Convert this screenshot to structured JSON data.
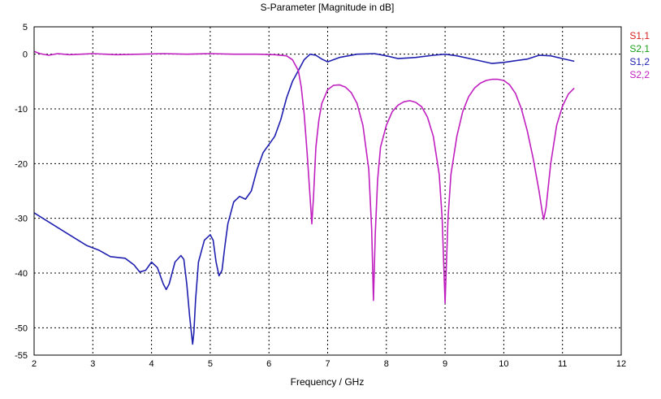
{
  "chart_data": {
    "type": "line",
    "title": "S-Parameter [Magnitude in dB]",
    "xlabel": "Frequency / GHz",
    "ylabel": "",
    "xlim": [
      2,
      12
    ],
    "ylim": [
      -55,
      5
    ],
    "xticks": [
      2,
      3,
      4,
      5,
      6,
      7,
      8,
      9,
      10,
      11,
      12
    ],
    "yticks": [
      5,
      0,
      -10,
      -20,
      -30,
      -40,
      -50,
      -55
    ],
    "grid": true,
    "legend_position": "top-right",
    "legend": [
      {
        "label": "S1,1",
        "color": "#d62020"
      },
      {
        "label": "S2,1",
        "color": "#1aa01a"
      },
      {
        "label": "S1,2",
        "color": "#2020b0"
      },
      {
        "label": "S2,2",
        "color": "#c020c0"
      }
    ],
    "series": [
      {
        "name": "S1,2",
        "color": "#2020b0",
        "points": [
          [
            2.0,
            -29.0
          ],
          [
            2.3,
            -31.0
          ],
          [
            2.6,
            -33.0
          ],
          [
            2.9,
            -35.0
          ],
          [
            3.1,
            -35.8
          ],
          [
            3.3,
            -37.0
          ],
          [
            3.55,
            -37.3
          ],
          [
            3.7,
            -38.5
          ],
          [
            3.8,
            -39.8
          ],
          [
            3.9,
            -39.5
          ],
          [
            4.0,
            -38.0
          ],
          [
            4.1,
            -39.0
          ],
          [
            4.2,
            -42.0
          ],
          [
            4.25,
            -43.0
          ],
          [
            4.3,
            -42.0
          ],
          [
            4.4,
            -38.0
          ],
          [
            4.5,
            -36.8
          ],
          [
            4.55,
            -37.5
          ],
          [
            4.6,
            -42.0
          ],
          [
            4.65,
            -48.0
          ],
          [
            4.7,
            -53.0
          ],
          [
            4.72,
            -51.0
          ],
          [
            4.75,
            -45.0
          ],
          [
            4.8,
            -38.0
          ],
          [
            4.9,
            -34.0
          ],
          [
            5.0,
            -33.0
          ],
          [
            5.05,
            -34.0
          ],
          [
            5.1,
            -38.0
          ],
          [
            5.15,
            -40.5
          ],
          [
            5.2,
            -39.5
          ],
          [
            5.25,
            -35.0
          ],
          [
            5.3,
            -31.0
          ],
          [
            5.4,
            -27.0
          ],
          [
            5.5,
            -26.0
          ],
          [
            5.6,
            -26.5
          ],
          [
            5.7,
            -25.0
          ],
          [
            5.8,
            -21.0
          ],
          [
            5.9,
            -18.0
          ],
          [
            6.0,
            -16.5
          ],
          [
            6.1,
            -15.0
          ],
          [
            6.2,
            -12.0
          ],
          [
            6.3,
            -8.0
          ],
          [
            6.4,
            -5.0
          ],
          [
            6.5,
            -3.0
          ],
          [
            6.6,
            -1.0
          ],
          [
            6.7,
            0.0
          ],
          [
            6.8,
            -0.2
          ],
          [
            6.9,
            -0.9
          ],
          [
            7.0,
            -1.4
          ],
          [
            7.2,
            -0.6
          ],
          [
            7.5,
            0.0
          ],
          [
            7.8,
            0.1
          ],
          [
            8.0,
            -0.3
          ],
          [
            8.2,
            -0.8
          ],
          [
            8.5,
            -0.6
          ],
          [
            8.8,
            -0.2
          ],
          [
            9.0,
            0.0
          ],
          [
            9.2,
            -0.3
          ],
          [
            9.5,
            -1.0
          ],
          [
            9.8,
            -1.7
          ],
          [
            10.0,
            -1.5
          ],
          [
            10.2,
            -1.2
          ],
          [
            10.4,
            -0.9
          ],
          [
            10.6,
            -0.2
          ],
          [
            10.8,
            -0.3
          ],
          [
            11.0,
            -0.8
          ],
          [
            11.2,
            -1.3
          ]
        ]
      },
      {
        "name": "S2,2",
        "color": "#c020c0",
        "points": [
          [
            2.0,
            0.5
          ],
          [
            2.1,
            0.1
          ],
          [
            2.25,
            -0.2
          ],
          [
            2.4,
            0.1
          ],
          [
            2.6,
            -0.1
          ],
          [
            2.8,
            0.0
          ],
          [
            3.0,
            0.1
          ],
          [
            3.4,
            -0.1
          ],
          [
            3.8,
            0.0
          ],
          [
            4.2,
            0.1
          ],
          [
            4.6,
            0.0
          ],
          [
            5.0,
            0.1
          ],
          [
            5.4,
            0.0
          ],
          [
            5.8,
            0.0
          ],
          [
            6.1,
            -0.1
          ],
          [
            6.3,
            -0.3
          ],
          [
            6.4,
            -1.0
          ],
          [
            6.5,
            -3.0
          ],
          [
            6.55,
            -6.0
          ],
          [
            6.6,
            -11.0
          ],
          [
            6.65,
            -18.0
          ],
          [
            6.7,
            -26.0
          ],
          [
            6.73,
            -31.0
          ],
          [
            6.76,
            -26.0
          ],
          [
            6.8,
            -17.0
          ],
          [
            6.85,
            -12.0
          ],
          [
            6.9,
            -9.0
          ],
          [
            7.0,
            -6.5
          ],
          [
            7.1,
            -5.7
          ],
          [
            7.2,
            -5.6
          ],
          [
            7.3,
            -6.0
          ],
          [
            7.4,
            -7.0
          ],
          [
            7.5,
            -9.0
          ],
          [
            7.6,
            -13.0
          ],
          [
            7.7,
            -21.0
          ],
          [
            7.75,
            -32.0
          ],
          [
            7.78,
            -45.0
          ],
          [
            7.81,
            -33.0
          ],
          [
            7.85,
            -23.0
          ],
          [
            7.9,
            -17.0
          ],
          [
            8.0,
            -13.0
          ],
          [
            8.1,
            -10.5
          ],
          [
            8.2,
            -9.3
          ],
          [
            8.3,
            -8.7
          ],
          [
            8.4,
            -8.5
          ],
          [
            8.5,
            -8.8
          ],
          [
            8.6,
            -9.6
          ],
          [
            8.7,
            -11.5
          ],
          [
            8.8,
            -15.0
          ],
          [
            8.9,
            -22.0
          ],
          [
            8.95,
            -30.0
          ],
          [
            9.0,
            -45.5
          ],
          [
            9.05,
            -30.0
          ],
          [
            9.1,
            -22.0
          ],
          [
            9.2,
            -15.0
          ],
          [
            9.3,
            -10.5
          ],
          [
            9.4,
            -7.8
          ],
          [
            9.5,
            -6.2
          ],
          [
            9.6,
            -5.3
          ],
          [
            9.7,
            -4.8
          ],
          [
            9.8,
            -4.6
          ],
          [
            9.9,
            -4.6
          ],
          [
            10.0,
            -4.8
          ],
          [
            10.1,
            -5.6
          ],
          [
            10.2,
            -7.2
          ],
          [
            10.3,
            -10.0
          ],
          [
            10.4,
            -14.0
          ],
          [
            10.5,
            -19.0
          ],
          [
            10.6,
            -25.0
          ],
          [
            10.65,
            -28.5
          ],
          [
            10.68,
            -30.2
          ],
          [
            10.72,
            -28.0
          ],
          [
            10.8,
            -20.0
          ],
          [
            10.9,
            -13.0
          ],
          [
            11.0,
            -9.5
          ],
          [
            11.1,
            -7.3
          ],
          [
            11.2,
            -6.2
          ]
        ]
      }
    ]
  }
}
